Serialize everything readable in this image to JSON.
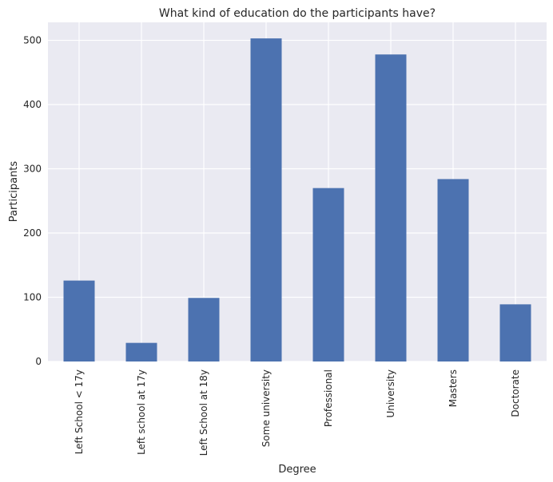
{
  "chart_data": {
    "type": "bar",
    "title": "What kind of education do the participants have?",
    "xlabel": "Degree",
    "ylabel": "Participants",
    "categories": [
      "Left School < 17y",
      "Left school at 17y",
      "Left School at 18y",
      "Some university",
      "Professional",
      "University",
      "Masters",
      "Doctorate"
    ],
    "values": [
      126,
      29,
      99,
      503,
      270,
      478,
      284,
      89
    ],
    "yticks": [
      0,
      100,
      200,
      300,
      400,
      500
    ],
    "ylim": [
      0,
      528
    ],
    "grid": true,
    "legend": "none",
    "colors": {
      "bar": "#4c72b0",
      "plot_background": "#eaeaf2",
      "grid": "#ffffff",
      "text": "#262626"
    }
  }
}
